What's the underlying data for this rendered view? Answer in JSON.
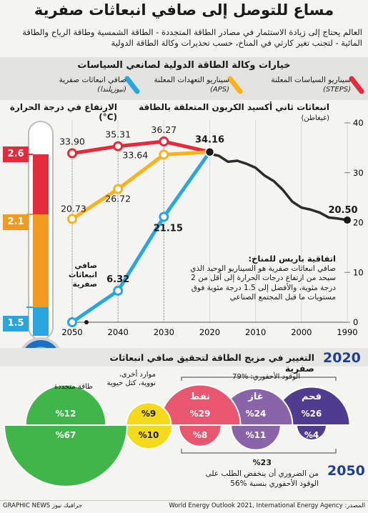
{
  "title": "مساع للتوصل إلى صافي انبعاثات صفرية",
  "subtitle": "العالم يحتاج إلى زيادة الاستثمار في مصادر الطاقة المتجددة - الطاقة الشمسية وطاقة الرياح والطاقة المائية - لتجنب تغير كارثي في المناخ، حسب تحذيرات وكالة الطاقة الدولية",
  "scenarios_title": "خيارات وكالة الطاقة الدولية لصانعي السياسات",
  "legend": {
    "steps_label": "سيناريو السياسات المعلنة",
    "steps_code": "(STEPS)",
    "aps_label": "سيناريو التعهدات المعلنة",
    "aps_code": "(APS)",
    "nz_label": "صافي انبعاثات صفرية",
    "nz_code": "(نيوزيلندا)"
  },
  "thermo": {
    "title": "الارتفاع في درجة الحرارة (C°)",
    "levels": [
      "2.6",
      "2.1",
      "1.5"
    ]
  },
  "emissions_title": "انبعاثات ثاني أكسيد الكربون المتعلقة بالطاقة",
  "emissions_unit": "(غيغاطن)",
  "nz_inline_label": "صافي انبعاثات صفرية",
  "paris": {
    "title": "اتفاقية باريس للمناخ:",
    "body": "صافي انبعاثات صفرية هو السيناريو الوحيد الذي سيحد من ارتفاع درجات الحرارة إلى أقل من 2 درجة مئوية، والأفضل إلى 1.5 درجة مئوية فوق مستويات ما قبل المجتمع الصناعي"
  },
  "chart_data": {
    "type": "line",
    "title": "انبعاثات ثاني أكسيد الكربون المتعلقة بالطاقة",
    "ylabel": "(غيغاطن)",
    "x_axis": "reversed",
    "x_ticks": [
      "2050",
      "2040",
      "2030",
      "2020",
      "2010",
      "2000",
      "1990"
    ],
    "ylim": [
      0,
      40
    ],
    "y_ticks": [
      "0",
      "10",
      "20",
      "30",
      "40"
    ],
    "historical": {
      "x": [
        1990,
        1992,
        1994,
        1996,
        1998,
        2000,
        2002,
        2004,
        2006,
        2008,
        2010,
        2012,
        2014,
        2016,
        2018,
        2019,
        2020
      ],
      "y": [
        20.5,
        20.8,
        21.0,
        22.0,
        22.6,
        23.0,
        24.2,
        26.5,
        28.3,
        29.4,
        31.0,
        31.8,
        32.4,
        32.2,
        33.4,
        33.6,
        34.16
      ]
    },
    "series": [
      {
        "name": "سيناريو السياسات المعلنة",
        "color": "#e32b3b",
        "x": [
          2020,
          2030,
          2040,
          2050
        ],
        "y": [
          34.16,
          36.27,
          35.31,
          33.9
        ]
      },
      {
        "name": "سيناريو التعهدات المعلنة",
        "color": "#f7b21e",
        "x": [
          2020,
          2030,
          2040,
          2050
        ],
        "y": [
          34.16,
          33.64,
          26.72,
          20.73
        ]
      },
      {
        "name": "صافي انبعاثات صفرية",
        "color": "#2aa6df",
        "x": [
          2020,
          2030,
          2040,
          2050
        ],
        "y": [
          34.16,
          21.15,
          6.32,
          0
        ]
      }
    ],
    "point_labels": [
      {
        "text": "33.90"
      },
      {
        "text": "35.31"
      },
      {
        "text": "36.27"
      },
      {
        "text": "34.16"
      },
      {
        "text": "20.73"
      },
      {
        "text": "26.72"
      },
      {
        "text": "33.64"
      },
      {
        "text": "6.32"
      },
      {
        "text": "21.15"
      },
      {
        "text": "20.50"
      }
    ]
  },
  "mix": {
    "title": "التغيير في مزيج الطاقة لتحقيق صافي انبعاثات صفرية",
    "year_top": "2020",
    "year_bottom": "2050",
    "fossil_total_label": "الوقود الأحفوري: %79",
    "fossil_2050_total": "%23",
    "fossil_2050_note": "من الضروري أن ينخفض الطلب على الوقود الأحفوري بنسبة %56",
    "categories": [
      {
        "name": "فحم",
        "color": "#4f3c8f",
        "v2020": "%26",
        "v2050": "%4"
      },
      {
        "name": "غاز",
        "color": "#8a64a8",
        "v2020": "%24",
        "v2050": "%11"
      },
      {
        "name": "نفط",
        "color": "#e8566f",
        "v2020": "%29",
        "v2050": "%8"
      },
      {
        "name": "موارد أخرى، نووية، كتل حيوية",
        "color": "#f3da1b",
        "v2020": "%9",
        "v2050": "%10"
      },
      {
        "name": "طاقة متجددة",
        "color": "#3fb54a",
        "v2020": "%12",
        "v2050": "%67"
      }
    ]
  },
  "footer": {
    "source": "المصدر: World Energy Outlook 2021, International Energy Agency",
    "credit": "GRAPHIC NEWS جرافيك نيوز"
  }
}
